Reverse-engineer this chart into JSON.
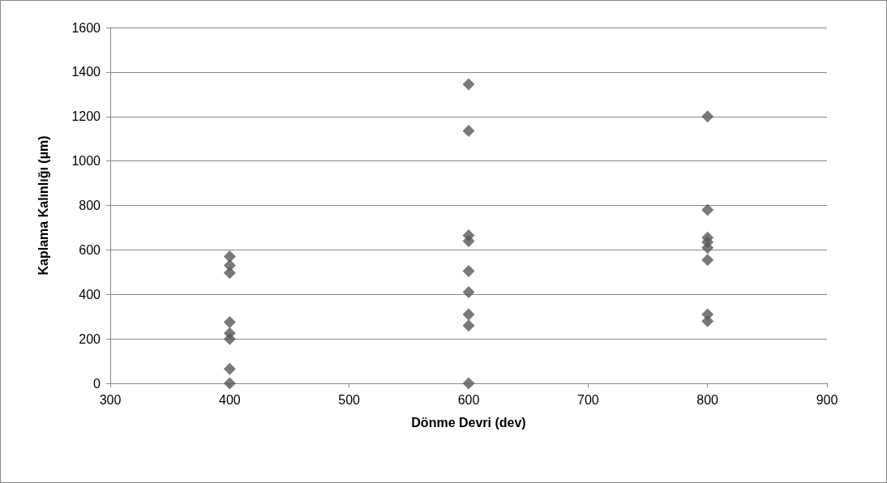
{
  "chart_data": {
    "type": "scatter",
    "xlabel": "Dönme Devri (dev)",
    "ylabel": "Kaplama Kalınlığı (µm)",
    "x": [
      400,
      400,
      400,
      400,
      400,
      400,
      400,
      400,
      600,
      600,
      600,
      600,
      600,
      600,
      600,
      600,
      600,
      800,
      800,
      800,
      800,
      800,
      800,
      800,
      800
    ],
    "values": [
      570,
      530,
      497,
      275,
      225,
      200,
      65,
      0,
      1345,
      1135,
      665,
      640,
      505,
      410,
      310,
      260,
      0,
      1200,
      780,
      655,
      635,
      610,
      555,
      310,
      280
    ],
    "color": "#595959",
    "marker": "diamond",
    "xlim": [
      300,
      900
    ],
    "xticks": [
      300,
      400,
      500,
      600,
      700,
      800,
      900
    ],
    "ylim": [
      0,
      1600
    ],
    "yticks": [
      0,
      200,
      400,
      600,
      800,
      1000,
      1200,
      1400,
      1600
    ],
    "grid": "y"
  }
}
